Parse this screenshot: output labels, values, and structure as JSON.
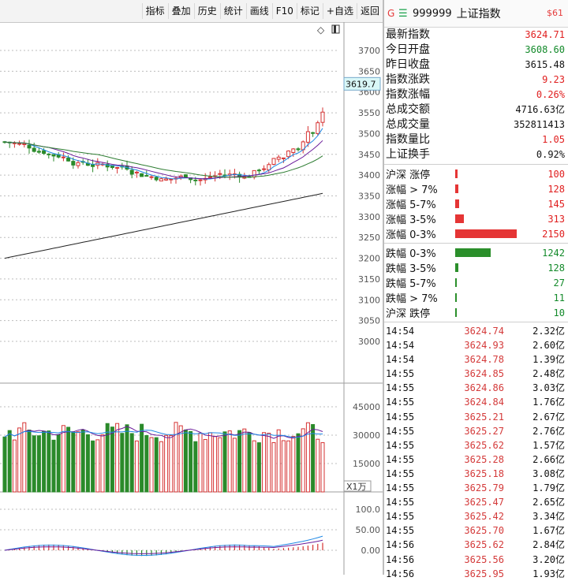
{
  "toolbar": {
    "buttons": [
      "指标",
      "叠加",
      "历史",
      "统计",
      "画线",
      "F10",
      "标记",
      "+自选",
      "返回"
    ]
  },
  "chart": {
    "price_ticks": [
      "3700",
      "3650",
      "3600",
      "3550",
      "3500",
      "3450",
      "3400",
      "3350",
      "3300",
      "3250",
      "3200",
      "3150",
      "3100",
      "3050",
      "3000"
    ],
    "current_price_tag": "3619.7",
    "volume_ticks": [
      "45000",
      "30000",
      "15000"
    ],
    "volume_unit": "X1万",
    "macd_ticks": [
      "100.0",
      "50.00",
      "0.00"
    ],
    "colors": {
      "up": "#d63333",
      "down": "#2a8a2a",
      "ma_long": "#222222",
      "ma_purple": "#6a1b9a",
      "ma_blue": "#1e88e5",
      "ma_green": "#2e7d32"
    }
  },
  "chart_data": {
    "type": "candlestick",
    "price_range": [
      3000,
      3700
    ],
    "volume_range": [
      0,
      45000
    ],
    "macd_range": [
      -20,
      100
    ]
  },
  "panel": {
    "icon": "G",
    "code": "999999",
    "name": "上证指数",
    "short_code": "$61",
    "stats": [
      {
        "label": "最新指数",
        "value": "3624.71",
        "color": "red"
      },
      {
        "label": "今日开盘",
        "value": "3608.60",
        "color": "green"
      },
      {
        "label": "昨日收盘",
        "value": "3615.48",
        "color": "black"
      },
      {
        "label": "指数涨跌",
        "value": "9.23",
        "color": "red"
      },
      {
        "label": "指数涨幅",
        "value": "0.26%",
        "color": "red"
      },
      {
        "label": "总成交额",
        "value": "4716.63亿",
        "color": "black"
      },
      {
        "label": "总成交量",
        "value": "352811413",
        "color": "black"
      },
      {
        "label": "指数量比",
        "value": "1.05",
        "color": "red"
      },
      {
        "label": "上证换手",
        "value": "0.92%",
        "color": "black"
      }
    ],
    "up_dist": [
      {
        "label": "沪深 涨停",
        "value": "100",
        "frac": 0.03
      },
      {
        "label": "涨幅 > 7%",
        "value": "128",
        "frac": 0.04
      },
      {
        "label": "涨幅 5-7%",
        "value": "145",
        "frac": 0.045
      },
      {
        "label": "涨幅 3-5%",
        "value": "313",
        "frac": 0.1
      },
      {
        "label": "涨幅 0-3%",
        "value": "2150",
        "frac": 0.7
      }
    ],
    "down_dist": [
      {
        "label": "跌幅 0-3%",
        "value": "1242",
        "frac": 0.4
      },
      {
        "label": "跌幅 3-5%",
        "value": "128",
        "frac": 0.04
      },
      {
        "label": "跌幅 5-7%",
        "value": "27",
        "frac": 0.01
      },
      {
        "label": "跌幅 > 7%",
        "value": "11",
        "frac": 0.008
      },
      {
        "label": "沪深 跌停",
        "value": "10",
        "frac": 0.006
      }
    ],
    "ticks": [
      {
        "time": "14:54",
        "price": "3624.74",
        "amount": "2.32亿"
      },
      {
        "time": "14:54",
        "price": "3624.93",
        "amount": "2.60亿"
      },
      {
        "time": "14:54",
        "price": "3624.78",
        "amount": "1.39亿"
      },
      {
        "time": "14:55",
        "price": "3624.85",
        "amount": "2.48亿"
      },
      {
        "time": "14:55",
        "price": "3624.86",
        "amount": "3.03亿"
      },
      {
        "time": "14:55",
        "price": "3624.84",
        "amount": "1.76亿"
      },
      {
        "time": "14:55",
        "price": "3625.21",
        "amount": "2.67亿"
      },
      {
        "time": "14:55",
        "price": "3625.27",
        "amount": "2.76亿"
      },
      {
        "time": "14:55",
        "price": "3625.62",
        "amount": "1.57亿"
      },
      {
        "time": "14:55",
        "price": "3625.28",
        "amount": "2.66亿"
      },
      {
        "time": "14:55",
        "price": "3625.18",
        "amount": "3.08亿"
      },
      {
        "time": "14:55",
        "price": "3625.79",
        "amount": "1.79亿"
      },
      {
        "time": "14:55",
        "price": "3625.47",
        "amount": "2.65亿"
      },
      {
        "time": "14:55",
        "price": "3625.42",
        "amount": "3.34亿"
      },
      {
        "time": "14:55",
        "price": "3625.70",
        "amount": "1.67亿"
      },
      {
        "time": "14:56",
        "price": "3625.62",
        "amount": "2.84亿"
      },
      {
        "time": "14:56",
        "price": "3625.56",
        "amount": "3.20亿"
      },
      {
        "time": "14:56",
        "price": "3625.95",
        "amount": "1.93亿"
      }
    ]
  }
}
